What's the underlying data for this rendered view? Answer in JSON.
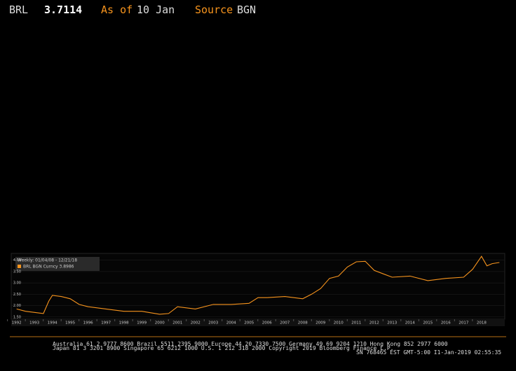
{
  "header": {
    "ticker": "BRL",
    "price": "3.7114",
    "as_of_label": "As of",
    "as_of": "10 Jan",
    "source_label": "Source",
    "source": "BGN"
  },
  "chart_data": {
    "type": "line",
    "legend_title": "Weekly: 01/04/08 - 12/21/18",
    "x": [
      1992,
      1992.5,
      1993,
      1993.5,
      1993.8,
      1994,
      1994.5,
      1995,
      1995.5,
      1996,
      1997,
      1998,
      1999,
      2000,
      2000.5,
      2001,
      2002,
      2003,
      2004,
      2005,
      2005.5,
      2006,
      2007,
      2008,
      2008.5,
      2009,
      2009.5,
      2010,
      2010.5,
      2011,
      2011.5,
      2012,
      2012.5,
      2013,
      2014,
      2015,
      2016,
      2017,
      2017.5,
      2018,
      2018.3,
      2018.6,
      2019
    ],
    "series": [
      {
        "name": "BRL BGN Curncy 3.8986",
        "color": "#f7941d",
        "values": [
          1.85,
          1.75,
          1.7,
          1.65,
          2.2,
          2.45,
          2.4,
          2.3,
          2.05,
          1.95,
          1.85,
          1.75,
          1.75,
          1.62,
          1.65,
          1.95,
          1.85,
          2.05,
          2.05,
          2.1,
          2.35,
          2.35,
          2.4,
          2.3,
          2.5,
          2.75,
          3.2,
          3.3,
          3.7,
          3.93,
          3.95,
          3.55,
          3.4,
          3.25,
          3.3,
          3.1,
          3.2,
          3.25,
          3.6,
          4.17,
          3.75,
          3.85,
          3.9
        ]
      }
    ],
    "xlim": [
      1991.7,
      2019.3
    ],
    "xticks": [
      1992,
      1993,
      1994,
      1995,
      1996,
      1997,
      1998,
      1999,
      2000,
      2001,
      2002,
      2003,
      2004,
      2005,
      2006,
      2007,
      2008,
      2009,
      2010,
      2011,
      2012,
      2013,
      2014,
      2015,
      2016,
      2017,
      2018
    ],
    "ylim": [
      1.4,
      4.3
    ],
    "yticks": [
      {
        "value": 1.5,
        "label": "1.50"
      },
      {
        "value": 2,
        "label": "2.00"
      },
      {
        "value": 2.5,
        "label": "2.50"
      },
      {
        "value": 3,
        "label": "3.00"
      },
      {
        "value": 3.5,
        "label": "3.50"
      },
      {
        "value": 4,
        "label": "4.00"
      }
    ]
  },
  "footer": {
    "lines": [
      "Australia 61 2 9777 8600 Brazil 5511 2395 9000 Europe 44 20 7330 7500 Germany 49 69 9204 1210 Hong Kong 852 2977 6000",
      "Japan 81 3 3201 8900 Singapore 65 6212 1000 U.S. 1 212 318 2000 Copyright 2019 Bloomberg Finance L.P.",
      "SN 768465 EST GMT-5:00 I1-Jan-2019 02:55:35"
    ]
  }
}
